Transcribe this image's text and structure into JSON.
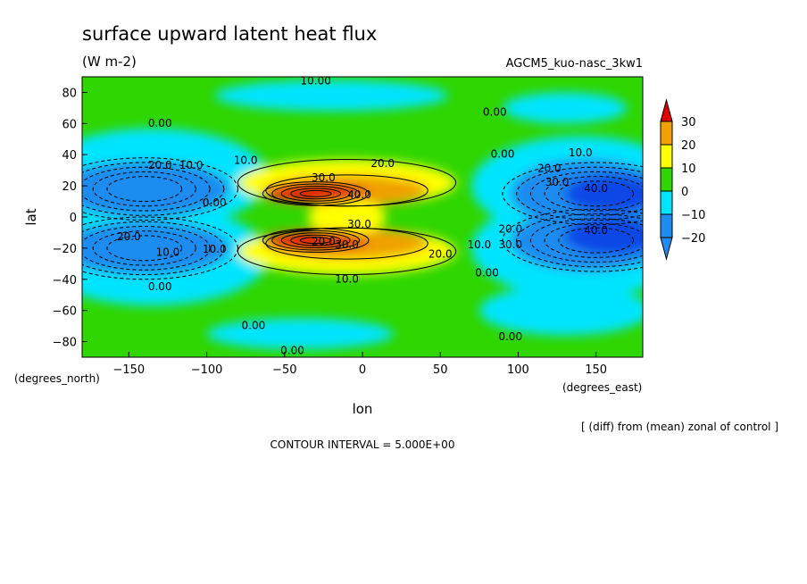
{
  "chart_data": {
    "type": "heatmap",
    "title": "surface upward latent heat flux",
    "subtitle": "(W m-2)",
    "dataset": "AGCM5_kuo-nasc_3kw1",
    "xlabel": "lon",
    "ylabel": "lat",
    "x_units": "(degrees_east)",
    "y_units": "(degrees_north)",
    "xlim": [
      -180,
      180
    ],
    "ylim": [
      -90,
      90
    ],
    "x_ticks": [
      -150,
      -100,
      -50,
      0,
      50,
      100,
      150
    ],
    "y_ticks": [
      -80,
      -60,
      -40,
      -20,
      0,
      20,
      40,
      60,
      80
    ],
    "footnote": "[ (diff) from (mean) zonal of control ]",
    "contour_interval": "CONTOUR INTERVAL = 5.000E+00",
    "colorbar": {
      "levels": [
        30,
        20,
        10,
        0,
        -10,
        -20
      ],
      "labels": [
        "30",
        "20",
        "10",
        "0",
        "−10",
        "−20"
      ],
      "colors": [
        "#e00000",
        "#f0a000",
        "#ffff00",
        "#2fd600",
        "#00e5ff",
        "#1e8cf0",
        "#0a46e6"
      ]
    },
    "contour_labels": [
      {
        "text": "10.00",
        "lon": -30,
        "lat": 85
      },
      {
        "text": "0.00",
        "lon": 85,
        "lat": 65
      },
      {
        "text": "0.00",
        "lon": -130,
        "lat": 58
      },
      {
        "text": "10.0",
        "lon": -75,
        "lat": 34
      },
      {
        "text": "20.0",
        "lon": 13,
        "lat": 32
      },
      {
        "text": "0.00",
        "lon": 90,
        "lat": 38
      },
      {
        "text": "10.0",
        "lon": 140,
        "lat": 39
      },
      {
        "text": "20.0",
        "lon": -130,
        "lat": 31
      },
      {
        "text": "10.0",
        "lon": -110,
        "lat": 31
      },
      {
        "text": "20.0",
        "lon": 120,
        "lat": 29
      },
      {
        "text": "30.0",
        "lon": 125,
        "lat": 20
      },
      {
        "text": "40.0",
        "lon": 150,
        "lat": 16
      },
      {
        "text": "30.0",
        "lon": -25,
        "lat": 23
      },
      {
        "text": "40.0",
        "lon": -2,
        "lat": 12
      },
      {
        "text": "0.00",
        "lon": -95,
        "lat": 7
      },
      {
        "text": "30.0",
        "lon": -2,
        "lat": -7
      },
      {
        "text": "20.0",
        "lon": 95,
        "lat": -10
      },
      {
        "text": "40.0",
        "lon": 150,
        "lat": -11
      },
      {
        "text": "20.0",
        "lon": -150,
        "lat": -15
      },
      {
        "text": "30.0",
        "lon": 95,
        "lat": -20
      },
      {
        "text": "10.0",
        "lon": 75,
        "lat": -20
      },
      {
        "text": "20.0",
        "lon": -25,
        "lat": -18
      },
      {
        "text": "30.0",
        "lon": -10,
        "lat": -20
      },
      {
        "text": "10.0",
        "lon": -125,
        "lat": -25
      },
      {
        "text": "10.0",
        "lon": -95,
        "lat": -23
      },
      {
        "text": "20.0",
        "lon": 50,
        "lat": -26
      },
      {
        "text": "10.0",
        "lon": -10,
        "lat": -42
      },
      {
        "text": "0.00",
        "lon": 80,
        "lat": -38
      },
      {
        "text": "0.00",
        "lon": -130,
        "lat": -47
      },
      {
        "text": "0.00",
        "lon": -70,
        "lat": -72
      },
      {
        "text": "0.00",
        "lon": 95,
        "lat": -79
      },
      {
        "text": "0.00",
        "lon": -45,
        "lat": -88
      }
    ]
  }
}
